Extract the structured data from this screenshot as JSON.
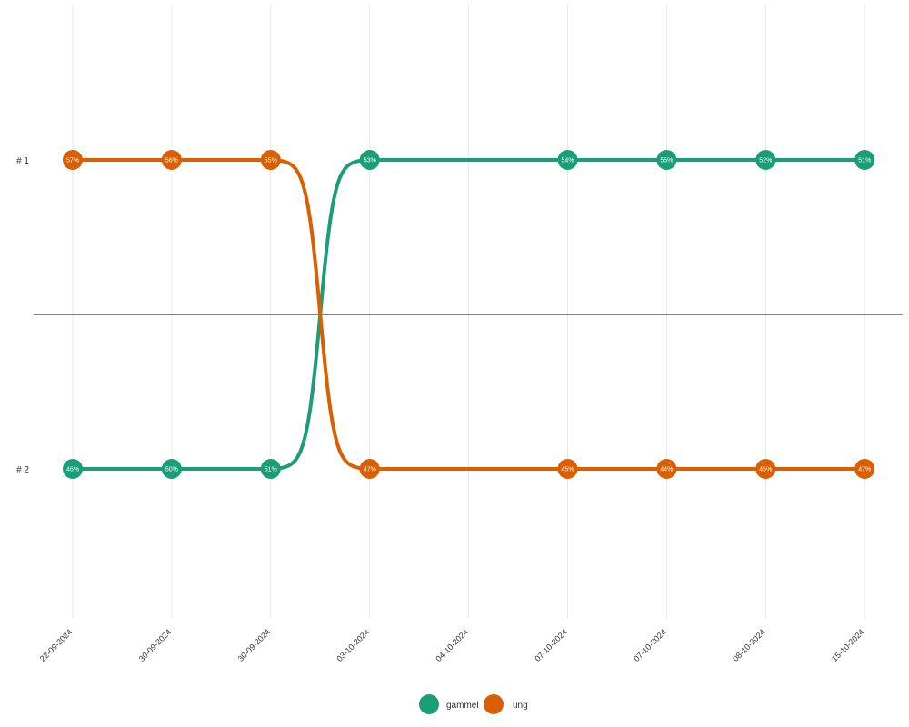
{
  "chart_data": {
    "type": "line",
    "subtype": "bump",
    "x": [
      "22-09-2024",
      "30-09-2024",
      "30-09-2024",
      "03-10-2024",
      "04-10-2024",
      "07-10-2024",
      "07-10-2024",
      "08-10-2024",
      "15-10-2024"
    ],
    "y_labels": [
      "# 1",
      "# 2"
    ],
    "series": [
      {
        "name": "gammel",
        "color": "#1b9e77",
        "points": [
          {
            "x_index": 0,
            "rank": 2,
            "label": "46%"
          },
          {
            "x_index": 1,
            "rank": 2,
            "label": "50%"
          },
          {
            "x_index": 2,
            "rank": 2,
            "label": "51%"
          },
          {
            "x_index": 3,
            "rank": 1,
            "label": "53%"
          },
          {
            "x_index": 5,
            "rank": 1,
            "label": "54%"
          },
          {
            "x_index": 6,
            "rank": 1,
            "label": "55%"
          },
          {
            "x_index": 7,
            "rank": 1,
            "label": "52%"
          },
          {
            "x_index": 8,
            "rank": 1,
            "label": "51%"
          }
        ]
      },
      {
        "name": "ung",
        "color": "#d95f02",
        "points": [
          {
            "x_index": 0,
            "rank": 1,
            "label": "57%"
          },
          {
            "x_index": 1,
            "rank": 1,
            "label": "56%"
          },
          {
            "x_index": 2,
            "rank": 1,
            "label": "55%"
          },
          {
            "x_index": 3,
            "rank": 2,
            "label": "47%"
          },
          {
            "x_index": 5,
            "rank": 2,
            "label": "45%"
          },
          {
            "x_index": 6,
            "rank": 2,
            "label": "44%"
          },
          {
            "x_index": 7,
            "rank": 2,
            "label": "45%"
          },
          {
            "x_index": 8,
            "rank": 2,
            "label": "47%"
          }
        ]
      }
    ],
    "grid": true,
    "legend_position": "bottom-center"
  }
}
